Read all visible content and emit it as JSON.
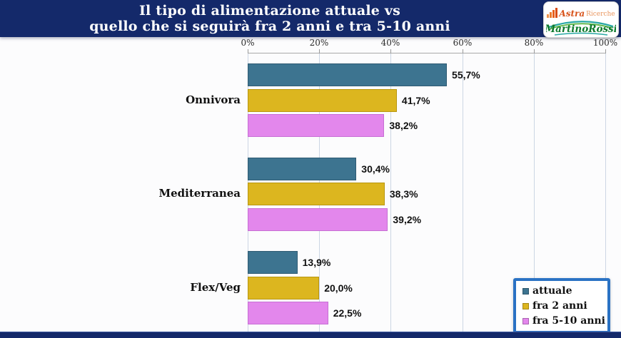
{
  "header": {
    "title_line1": "Il tipo di alimentazione attuale vs",
    "title_line2": "quello che si seguirà fra 2 anni e tra 5-10 anni",
    "bg_color": "#14296a"
  },
  "logos": {
    "astra": {
      "text_primary": "Astra",
      "text_secondary": "Ricerche"
    },
    "martino": {
      "text": "MartinoRossi"
    }
  },
  "chart_data": {
    "type": "bar",
    "orientation": "horizontal",
    "title": "Il tipo di alimentazione attuale vs quello che si seguirà fra 2 anni e tra 5-10 anni",
    "categories": [
      "Onnivora",
      "Mediterranea",
      "Flex/Veg"
    ],
    "series": [
      {
        "name": "attuale",
        "color": "#3d7490",
        "border": "#2f5b73",
        "values": [
          55.7,
          30.4,
          13.9
        ],
        "labels": [
          "55,7%",
          "30,4%",
          "13,9%"
        ]
      },
      {
        "name": "fra 2 anni",
        "color": "#dcb61f",
        "border": "#b8960f",
        "values": [
          41.7,
          38.3,
          20.0
        ],
        "labels": [
          "41,7%",
          "38,3%",
          "20,0%"
        ]
      },
      {
        "name": "fra 5-10 anni",
        "color": "#e387ec",
        "border": "#c76fd4",
        "values": [
          38.2,
          39.2,
          22.5
        ],
        "labels": [
          "38,2%",
          "39,2%",
          "22,5%"
        ]
      }
    ],
    "x_axis": {
      "min": 0,
      "max": 100,
      "ticks": [
        "0%",
        "20%",
        "40%",
        "60%",
        "80%",
        "100%"
      ]
    },
    "grid": true,
    "legend": {
      "position": "bottom-right",
      "border_color": "#2a72c4"
    }
  }
}
